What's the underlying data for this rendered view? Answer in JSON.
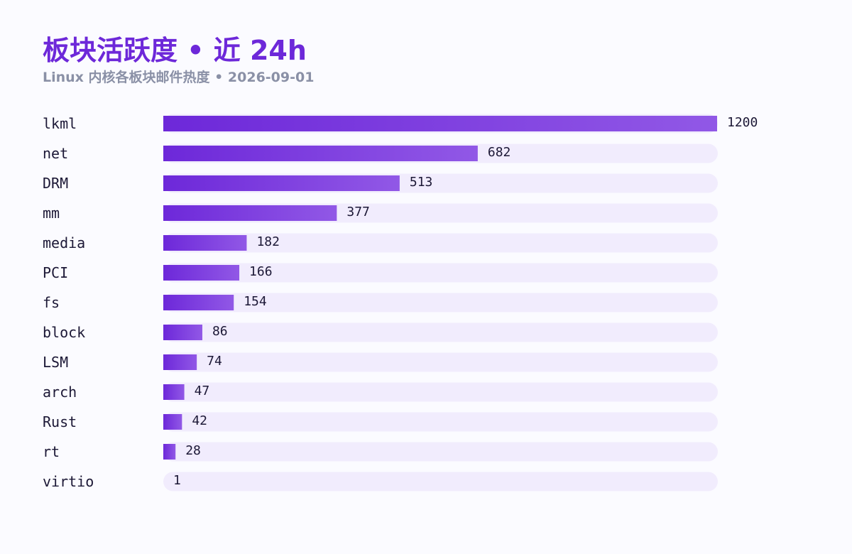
{
  "header": {
    "title": "板块活跃度 • 近 24h",
    "subtitle": "Linux 内核各板块邮件热度 • 2026-09-01"
  },
  "colors": {
    "bar_start": "#6d28d9",
    "bar_end": "#9158e6",
    "track": "#f1ecfd",
    "title": "#6d28d9",
    "subtitle": "#8a90a6",
    "text": "#1c1836",
    "background": "#fbfbff"
  },
  "chart_data": {
    "type": "bar",
    "orientation": "horizontal",
    "title": "板块活跃度 • 近 24h",
    "subtitle": "Linux 内核各板块邮件热度 • 2026-09-01",
    "xlabel": "",
    "ylabel": "",
    "xlim": [
      0,
      1200
    ],
    "grid": false,
    "categories": [
      "lkml",
      "net",
      "DRM",
      "mm",
      "media",
      "PCI",
      "fs",
      "block",
      "LSM",
      "arch",
      "Rust",
      "rt",
      "virtio"
    ],
    "values": [
      1200,
      682,
      513,
      377,
      182,
      166,
      154,
      86,
      74,
      47,
      42,
      28,
      1
    ]
  }
}
